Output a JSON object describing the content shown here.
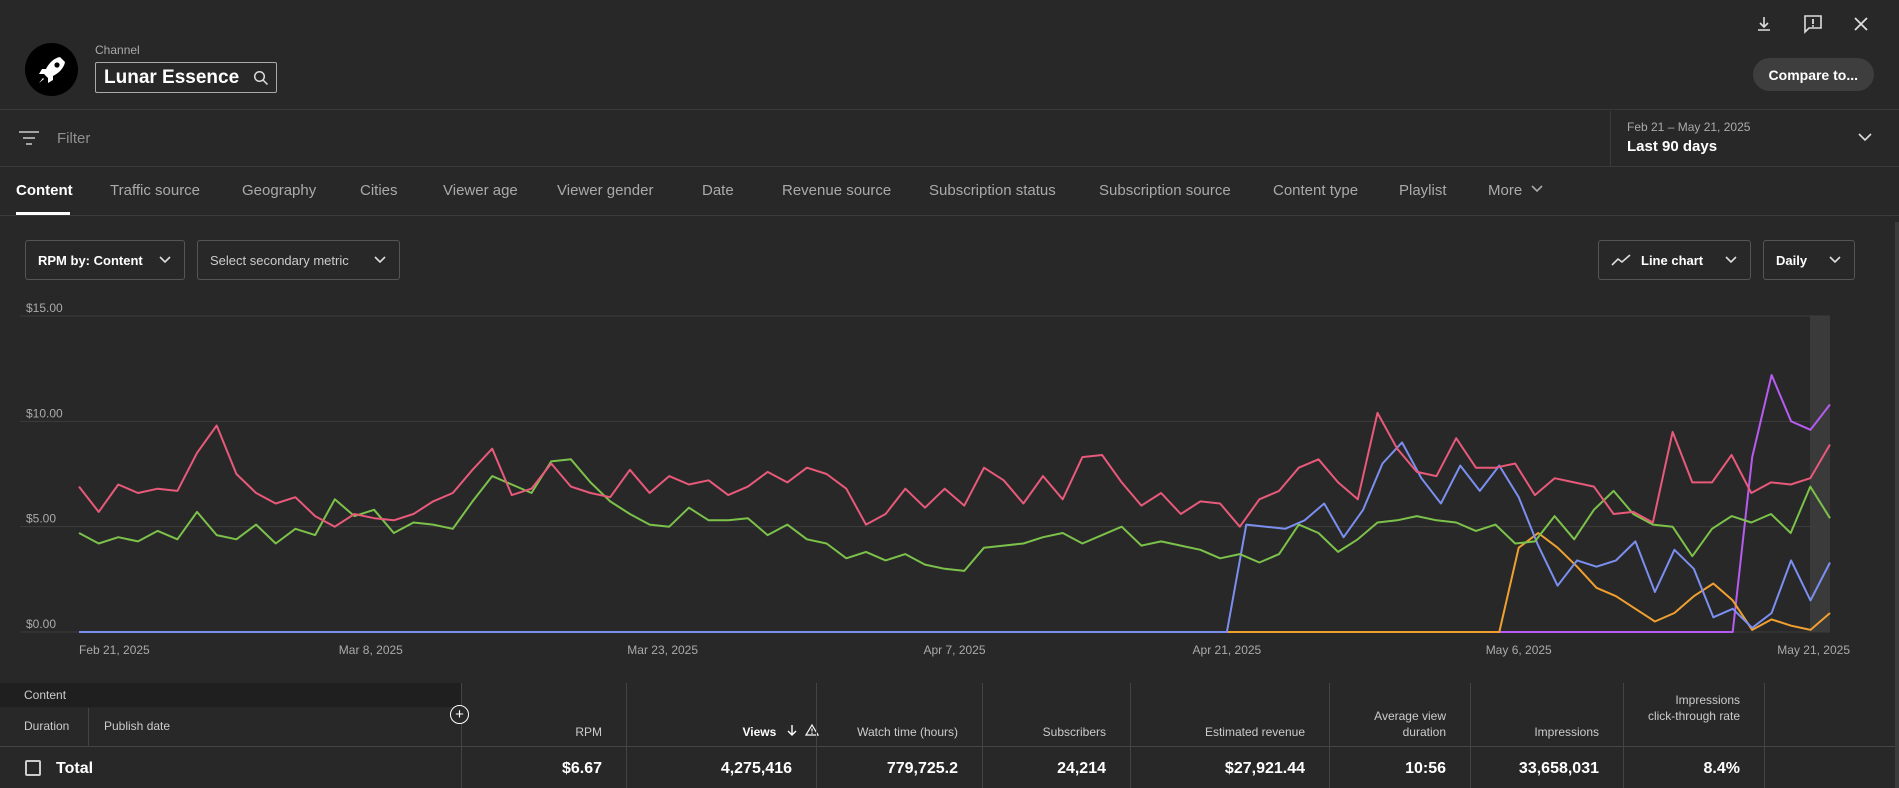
{
  "header": {
    "channel_label": "Channel",
    "channel_name": "Lunar Essence",
    "compare_label": "Compare to..."
  },
  "icons": {
    "avatar": "rocket-icon",
    "download": "download-icon",
    "feedback": "feedback-icon",
    "close": "close-icon",
    "search": "search-icon",
    "filter": "filter-icon"
  },
  "filter": {
    "placeholder": "Filter"
  },
  "date_range": {
    "range": "Feb 21 – May 21, 2025",
    "label": "Last 90 days"
  },
  "tabs": [
    "Content",
    "Traffic source",
    "Geography",
    "Cities",
    "Viewer age",
    "Viewer gender",
    "Date",
    "Revenue source",
    "Subscription status",
    "Subscription source",
    "Content type",
    "Playlist",
    "More"
  ],
  "controls": {
    "metric": "RPM by: Content",
    "secondary": "Select secondary metric",
    "chart_type": "Line chart",
    "interval": "Daily"
  },
  "chart_data": {
    "type": "line",
    "y_ticks": [
      "$15.00",
      "$10.00",
      "$5.00",
      "$0.00"
    ],
    "x_ticks": [
      "Feb 21, 2025",
      "Mar 8, 2025",
      "Mar 23, 2025",
      "Apr 7, 2025",
      "Apr 21, 2025",
      "May 6, 2025",
      "May 21, 2025"
    ],
    "ylim": [
      0,
      15
    ],
    "n_days": 90,
    "grid": true,
    "colors": [
      "#e8597a",
      "#7cc24a",
      "#7b8ff0",
      "#f0a030",
      "#b65cf0"
    ],
    "series": [
      {
        "values": [
          6.9,
          5.7,
          7.0,
          6.6,
          6.8,
          6.7,
          8.5,
          9.8,
          7.5,
          6.6,
          6.1,
          6.4,
          5.5,
          5.0,
          5.6,
          5.4,
          5.3,
          5.6,
          6.2,
          6.6,
          7.7,
          8.7,
          6.5,
          6.8,
          8.0,
          6.9,
          6.6,
          6.4,
          7.7,
          6.6,
          7.4,
          7.0,
          7.2,
          6.5,
          6.9,
          7.6,
          7.1,
          7.8,
          7.5,
          6.8,
          5.1,
          5.6,
          6.8,
          5.9,
          6.8,
          6.0,
          7.8,
          7.2,
          6.1,
          7.4,
          6.3,
          8.3,
          8.4,
          7.1,
          6.0,
          6.6,
          5.6,
          6.2,
          6.1,
          5.0,
          6.3,
          6.7,
          7.8,
          8.2,
          7.1,
          6.3,
          10.4,
          8.7,
          7.6,
          7.4,
          9.2,
          7.8,
          7.8,
          8.0,
          6.5,
          7.3,
          7.1,
          6.9,
          5.6,
          5.7,
          5.2,
          9.5,
          7.1,
          7.1,
          8.4,
          6.6,
          7.1,
          7.0,
          7.3,
          8.9
        ]
      },
      {
        "values": [
          4.7,
          4.2,
          4.5,
          4.3,
          4.8,
          4.4,
          5.7,
          4.6,
          4.4,
          5.1,
          4.2,
          4.9,
          4.6,
          6.3,
          5.5,
          5.8,
          4.7,
          5.2,
          5.1,
          4.9,
          6.2,
          7.4,
          7.0,
          6.6,
          8.1,
          8.2,
          7.1,
          6.2,
          5.6,
          5.1,
          5.0,
          5.9,
          5.3,
          5.3,
          5.4,
          4.6,
          5.1,
          4.4,
          4.2,
          3.5,
          3.8,
          3.4,
          3.7,
          3.2,
          3.0,
          2.9,
          4.0,
          4.1,
          4.2,
          4.5,
          4.7,
          4.2,
          4.6,
          5.0,
          4.1,
          4.3,
          4.1,
          3.9,
          3.5,
          3.7,
          3.3,
          3.7,
          5.1,
          4.7,
          3.8,
          4.4,
          5.2,
          5.3,
          5.5,
          5.3,
          5.2,
          4.8,
          5.1,
          4.2,
          4.3,
          5.5,
          4.4,
          5.8,
          6.7,
          5.6,
          5.1,
          5.0,
          3.6,
          4.9,
          5.5,
          5.2,
          5.6,
          4.7,
          6.9,
          5.4
        ]
      },
      {
        "values": [
          0,
          0,
          0,
          0,
          0,
          0,
          0,
          0,
          0,
          0,
          0,
          0,
          0,
          0,
          0,
          0,
          0,
          0,
          0,
          0,
          0,
          0,
          0,
          0,
          0,
          0,
          0,
          0,
          0,
          0,
          0,
          0,
          0,
          0,
          0,
          0,
          0,
          0,
          0,
          0,
          0,
          0,
          0,
          0,
          0,
          0,
          0,
          0,
          0,
          0,
          0,
          0,
          0,
          0,
          0,
          0,
          0,
          0,
          0,
          0,
          5.1,
          5.0,
          4.9,
          5.3,
          6.1,
          4.5,
          5.8,
          8.0,
          9.0,
          7.3,
          6.1,
          7.9,
          6.7,
          7.9,
          6.4,
          4.1,
          2.2,
          3.4,
          3.1,
          3.4,
          4.3,
          1.9,
          3.9,
          3.0,
          0.7,
          1.1,
          0.2,
          0.9,
          3.4,
          1.5,
          3.3
        ]
      },
      {
        "values": [
          0,
          0,
          0,
          0,
          0,
          0,
          0,
          0,
          0,
          0,
          0,
          0,
          0,
          0,
          0,
          0,
          0,
          0,
          0,
          0,
          0,
          0,
          0,
          0,
          0,
          0,
          0,
          0,
          0,
          0,
          0,
          0,
          0,
          0,
          0,
          0,
          0,
          0,
          0,
          0,
          0,
          0,
          0,
          0,
          0,
          0,
          0,
          0,
          0,
          0,
          0,
          0,
          0,
          0,
          0,
          0,
          0,
          0,
          0,
          0,
          0,
          0,
          0,
          0,
          0,
          0,
          0,
          0,
          0,
          0,
          0,
          0,
          0,
          0,
          4.0,
          4.7,
          4.0,
          3.1,
          2.1,
          1.7,
          1.1,
          0.5,
          0.9,
          1.7,
          2.3,
          1.5,
          0.1,
          0.6,
          0.3,
          0.1,
          0.9
        ]
      },
      {
        "values": [
          0,
          0,
          0,
          0,
          0,
          0,
          0,
          0,
          0,
          0,
          0,
          0,
          0,
          0,
          0,
          0,
          0,
          0,
          0,
          0,
          0,
          0,
          0,
          0,
          0,
          0,
          0,
          0,
          0,
          0,
          0,
          0,
          0,
          0,
          0,
          0,
          0,
          0,
          0,
          0,
          0,
          0,
          0,
          0,
          0,
          0,
          0,
          0,
          0,
          0,
          0,
          0,
          0,
          0,
          0,
          0,
          0,
          0,
          0,
          0,
          0,
          0,
          0,
          0,
          0,
          0,
          0,
          0,
          0,
          0,
          0,
          0,
          0,
          0,
          0,
          0,
          0,
          0,
          0,
          0,
          0,
          0,
          0,
          0,
          0,
          0,
          8.3,
          12.2,
          10.0,
          9.6,
          10.8
        ]
      }
    ]
  },
  "table": {
    "content_label": "Content",
    "duration_label": "Duration",
    "publish_label": "Publish date",
    "columns": [
      "RPM",
      "Views",
      "Watch time (hours)",
      "Subscribers",
      "Estimated revenue",
      "Average view duration",
      "Impressions",
      "Impressions click-through rate"
    ],
    "total_label": "Total",
    "totals": [
      "$6.67",
      "4,275,416",
      "779,725.2",
      "24,214",
      "$27,921.44",
      "10:56",
      "33,658,031",
      "8.4%"
    ]
  }
}
